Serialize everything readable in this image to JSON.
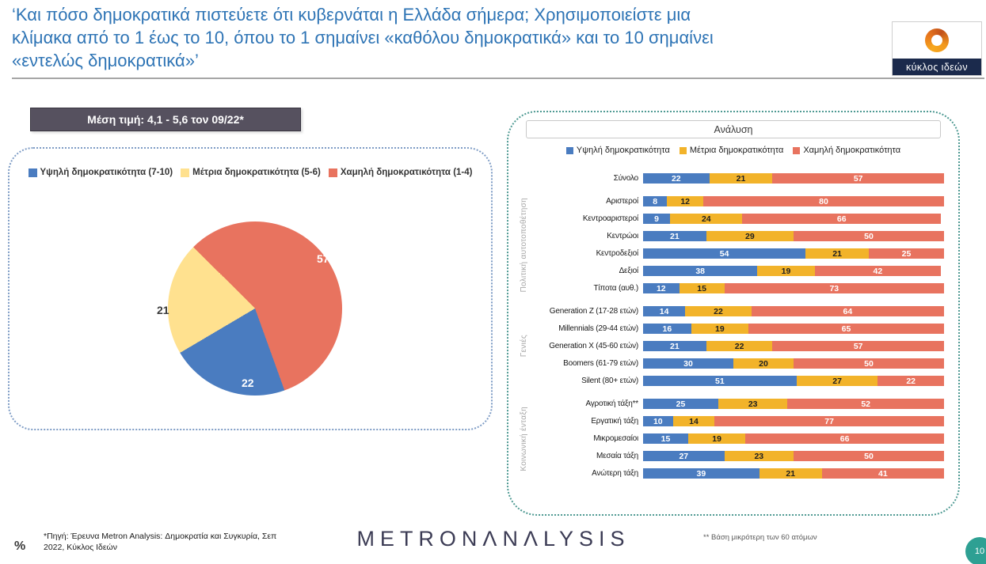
{
  "header": {
    "title": "‘Και πόσο δημοκρατικά πιστεύετε ότι κυβερνάται η Ελλάδα σήμερα; Χρησιμοποιείστε μια κλίμακα από το 1 έως το 10, όπου το 1 σημαίνει «καθόλου δημοκρατικά» και το 10 σημαίνει «εντελώς δημοκρατικά»’",
    "logo_text": "κύκλος ιδεών"
  },
  "mean_box": {
    "label": "Μέση τιμή: 4,1 - 5,6 τον 09/22*"
  },
  "analysis": {
    "title": "Ανάλυση"
  },
  "colors": {
    "high": "#4A7CC0",
    "mid_bar": "#F2B32A",
    "mid_pie": "#FFE18F",
    "low": "#E8735F",
    "title_blue": "#2E74B5",
    "page_circle": "#2EA093"
  },
  "footer": {
    "percent": "%",
    "source": "*Πηγή: Έρευνα Metron Analysis: Δημοκρατία και Συγκυρία, Σεπ 2022, Κύκλος Ιδεών",
    "brand": "METRONΛNΛLYSIS",
    "basis_note": "** Βάση μικρότερη των 60 ατόμων",
    "page": "10"
  },
  "chart_data": [
    {
      "type": "pie",
      "slices": [
        {
          "label": "Υψηλή δημοκρατικότητα (7-10)",
          "value": 22,
          "color": "#4A7CC0"
        },
        {
          "label": "Μέτρια δημοκρατικότητα (5-6)",
          "value": 21,
          "color": "#FFE18F"
        },
        {
          "label": "Χαμηλή δημοκρατικότητα (1-4)",
          "value": 57,
          "color": "#E8735F"
        }
      ],
      "legend_position": "top",
      "start_angle_deg": 315,
      "render_order": [
        2,
        0,
        1
      ]
    },
    {
      "type": "bar",
      "stacked": true,
      "orientation": "horizontal",
      "x_max": 100,
      "series_names": [
        "Υψηλή δημοκρατικότητα",
        "Μέτρια δημοκρατικότητα",
        "Χαμηλή δημοκρατικότητα"
      ],
      "colors": [
        "#4A7CC0",
        "#F2B32A",
        "#E8735F"
      ],
      "groups": [
        {
          "group": "",
          "rows": [
            {
              "label": "Σύνολο",
              "values": [
                22,
                21,
                57
              ]
            }
          ]
        },
        {
          "group": "Πολιτική αυτοτοποθέτηση",
          "rows": [
            {
              "label": "Αριστεροί",
              "values": [
                8,
                12,
                80
              ]
            },
            {
              "label": "Κεντροαριστεροί",
              "values": [
                9,
                24,
                66
              ]
            },
            {
              "label": "Κεντρώοι",
              "values": [
                21,
                29,
                50
              ]
            },
            {
              "label": "Κεντροδεξιοί",
              "values": [
                54,
                21,
                25
              ]
            },
            {
              "label": "Δεξιοί",
              "values": [
                38,
                19,
                42
              ]
            },
            {
              "label": "Τίποτα (αυθ.)",
              "values": [
                12,
                15,
                73
              ]
            }
          ]
        },
        {
          "group": "Γενιές",
          "rows": [
            {
              "label": "Generation Z  (17-28 ετών)",
              "values": [
                14,
                22,
                64
              ]
            },
            {
              "label": "Millennials (29-44 ετών)",
              "values": [
                16,
                19,
                65
              ]
            },
            {
              "label": "Generation X  (45-60 ετών)",
              "values": [
                21,
                22,
                57
              ]
            },
            {
              "label": "Boomers (61-79 ετών)",
              "values": [
                30,
                20,
                50
              ]
            },
            {
              "label": "Silent  (80+ ετών)",
              "values": [
                51,
                27,
                22
              ]
            }
          ]
        },
        {
          "group": "Κοινωνική ένταξη",
          "rows": [
            {
              "label": "Αγροτική τάξη**",
              "values": [
                25,
                23,
                52
              ]
            },
            {
              "label": "Εργατική τάξη",
              "values": [
                10,
                14,
                77
              ]
            },
            {
              "label": "Μικρομεσαίοι",
              "values": [
                15,
                19,
                66
              ]
            },
            {
              "label": "Μεσαία τάξη",
              "values": [
                27,
                23,
                50
              ]
            },
            {
              "label": "Ανώτερη τάξη",
              "values": [
                39,
                21,
                41
              ]
            }
          ]
        }
      ]
    }
  ]
}
